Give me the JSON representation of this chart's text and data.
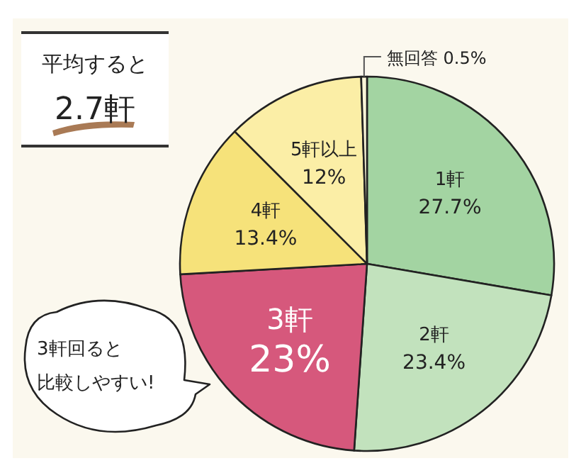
{
  "chart_data": {
    "type": "pie",
    "categories": [
      "1軒",
      "2軒",
      "3軒",
      "4軒",
      "5軒以上",
      "無回答"
    ],
    "values": [
      27.7,
      23.4,
      23,
      13.4,
      12,
      0.5
    ],
    "colors": [
      "#a3d4a2",
      "#c2e2bd",
      "#d6587c",
      "#f6e27a",
      "#fbeea6",
      "#fbf6d8"
    ],
    "value_labels": [
      "27.7%",
      "23.4%",
      "23%",
      "13.4%",
      "12%",
      "0.5%"
    ],
    "annotations": [
      "平均すると\n2.7軒",
      "3軒回ると",
      "比較しやすい!"
    ]
  }
}
